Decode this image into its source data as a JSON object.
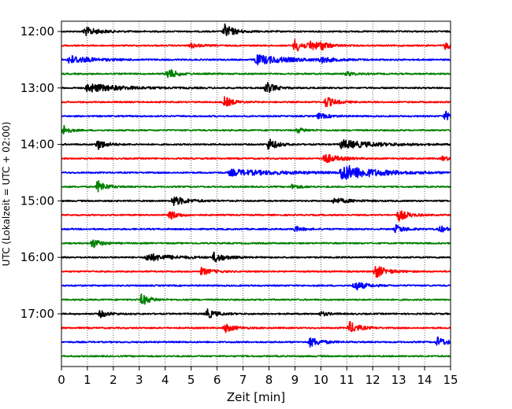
{
  "chart_data": {
    "type": "line",
    "title": "",
    "xlabel": "Zeit  [min]",
    "ylabel": "UTC (Lokalzeit = UTC + 02:00)",
    "xlim": [
      0,
      15
    ],
    "x_ticks": [
      0,
      1,
      2,
      3,
      4,
      5,
      6,
      7,
      8,
      9,
      10,
      11,
      12,
      13,
      14,
      15
    ],
    "y_tick_labels": [
      "12:00",
      "13:00",
      "14:00",
      "15:00",
      "16:00",
      "17:00"
    ],
    "grid": "x-dotted",
    "legend": "none",
    "color_cycle": [
      "#000000",
      "#ff0000",
      "#0000ff",
      "#008000"
    ],
    "series": [
      {
        "start": "12:00",
        "color": "#000000",
        "events": [
          {
            "t": 0.9,
            "amp": 1.0,
            "dur": 0.5
          },
          {
            "t": 6.3,
            "amp": 1.6,
            "dur": 0.35
          }
        ]
      },
      {
        "start": "12:15",
        "color": "#ff0000",
        "events": [
          {
            "t": 5.0,
            "amp": 0.6,
            "dur": 0.3
          },
          {
            "t": 9.0,
            "amp": 1.5,
            "dur": 0.35
          },
          {
            "t": 9.6,
            "amp": 1.0,
            "dur": 0.3
          },
          {
            "t": 10.0,
            "amp": 0.8,
            "dur": 0.3
          },
          {
            "t": 14.8,
            "amp": 0.8,
            "dur": 0.3
          }
        ]
      },
      {
        "start": "12:30",
        "color": "#0000ff",
        "events": [
          {
            "t": 0.3,
            "amp": 1.0,
            "dur": 0.8
          },
          {
            "t": 7.5,
            "amp": 1.1,
            "dur": 1.2
          },
          {
            "t": 10.0,
            "amp": 0.6,
            "dur": 0.4
          }
        ]
      },
      {
        "start": "12:45",
        "color": "#008000",
        "events": [
          {
            "t": 4.1,
            "amp": 1.3,
            "dur": 0.3
          },
          {
            "t": 11.0,
            "amp": 0.5,
            "dur": 0.3
          }
        ]
      },
      {
        "start": "13:00",
        "color": "#000000",
        "events": [
          {
            "t": 1.0,
            "amp": 1.0,
            "dur": 1.2
          },
          {
            "t": 7.9,
            "amp": 1.4,
            "dur": 0.3
          }
        ]
      },
      {
        "start": "13:15",
        "color": "#ff0000",
        "events": [
          {
            "t": 6.3,
            "amp": 1.2,
            "dur": 0.3
          },
          {
            "t": 10.2,
            "amp": 1.2,
            "dur": 0.35
          }
        ]
      },
      {
        "start": "13:30",
        "color": "#0000ff",
        "events": [
          {
            "t": 9.9,
            "amp": 0.6,
            "dur": 0.4
          },
          {
            "t": 14.8,
            "amp": 1.0,
            "dur": 0.3
          }
        ]
      },
      {
        "start": "13:45",
        "color": "#008000",
        "events": [
          {
            "t": 0.1,
            "amp": 1.2,
            "dur": 0.2
          },
          {
            "t": 9.1,
            "amp": 0.6,
            "dur": 0.3
          }
        ]
      },
      {
        "start": "14:00",
        "color": "#000000",
        "events": [
          {
            "t": 1.4,
            "amp": 1.2,
            "dur": 0.3
          },
          {
            "t": 8.0,
            "amp": 1.4,
            "dur": 0.3
          },
          {
            "t": 10.8,
            "amp": 1.0,
            "dur": 1.2
          }
        ]
      },
      {
        "start": "14:15",
        "color": "#ff0000",
        "events": [
          {
            "t": 10.1,
            "amp": 1.2,
            "dur": 0.5
          },
          {
            "t": 14.7,
            "amp": 0.5,
            "dur": 0.3
          }
        ]
      },
      {
        "start": "14:30",
        "color": "#0000ff",
        "events": [
          {
            "t": 6.5,
            "amp": 0.7,
            "dur": 2.0
          },
          {
            "t": 10.8,
            "amp": 1.8,
            "dur": 1.2
          }
        ]
      },
      {
        "start": "14:45",
        "color": "#008000",
        "events": [
          {
            "t": 1.4,
            "amp": 1.4,
            "dur": 0.3
          },
          {
            "t": 8.9,
            "amp": 0.5,
            "dur": 0.3
          }
        ]
      },
      {
        "start": "15:00",
        "color": "#000000",
        "events": [
          {
            "t": 4.3,
            "amp": 1.1,
            "dur": 0.5
          },
          {
            "t": 10.5,
            "amp": 0.6,
            "dur": 0.6
          }
        ]
      },
      {
        "start": "15:15",
        "color": "#ff0000",
        "events": [
          {
            "t": 4.2,
            "amp": 1.0,
            "dur": 0.3
          },
          {
            "t": 13.0,
            "amp": 1.3,
            "dur": 0.35
          }
        ]
      },
      {
        "start": "15:30",
        "color": "#0000ff",
        "events": [
          {
            "t": 9.0,
            "amp": 0.6,
            "dur": 0.3
          },
          {
            "t": 12.9,
            "amp": 0.9,
            "dur": 0.35
          },
          {
            "t": 14.6,
            "amp": 0.7,
            "dur": 0.3
          }
        ]
      },
      {
        "start": "15:45",
        "color": "#008000",
        "events": [
          {
            "t": 1.2,
            "amp": 1.1,
            "dur": 0.3
          }
        ]
      },
      {
        "start": "16:00",
        "color": "#000000",
        "events": [
          {
            "t": 3.3,
            "amp": 0.9,
            "dur": 0.9
          },
          {
            "t": 5.9,
            "amp": 1.2,
            "dur": 0.35
          }
        ]
      },
      {
        "start": "16:15",
        "color": "#ff0000",
        "events": [
          {
            "t": 5.4,
            "amp": 0.8,
            "dur": 0.4
          },
          {
            "t": 12.1,
            "amp": 1.5,
            "dur": 0.4
          }
        ]
      },
      {
        "start": "16:30",
        "color": "#0000ff",
        "events": [
          {
            "t": 11.3,
            "amp": 1.1,
            "dur": 0.4
          }
        ]
      },
      {
        "start": "16:45",
        "color": "#008000",
        "events": [
          {
            "t": 3.1,
            "amp": 1.3,
            "dur": 0.3
          }
        ]
      },
      {
        "start": "17:00",
        "color": "#000000",
        "events": [
          {
            "t": 1.5,
            "amp": 0.8,
            "dur": 0.3
          },
          {
            "t": 5.6,
            "amp": 1.1,
            "dur": 0.35
          },
          {
            "t": 10.0,
            "amp": 0.5,
            "dur": 0.3
          }
        ]
      },
      {
        "start": "17:15",
        "color": "#ff0000",
        "events": [
          {
            "t": 6.3,
            "amp": 1.0,
            "dur": 0.35
          },
          {
            "t": 11.1,
            "amp": 1.4,
            "dur": 0.35
          }
        ]
      },
      {
        "start": "17:30",
        "color": "#0000ff",
        "events": [
          {
            "t": 9.6,
            "amp": 1.1,
            "dur": 0.4
          },
          {
            "t": 14.5,
            "amp": 1.1,
            "dur": 0.35
          }
        ]
      },
      {
        "start": "17:45",
        "color": "#008000",
        "events": []
      }
    ]
  }
}
